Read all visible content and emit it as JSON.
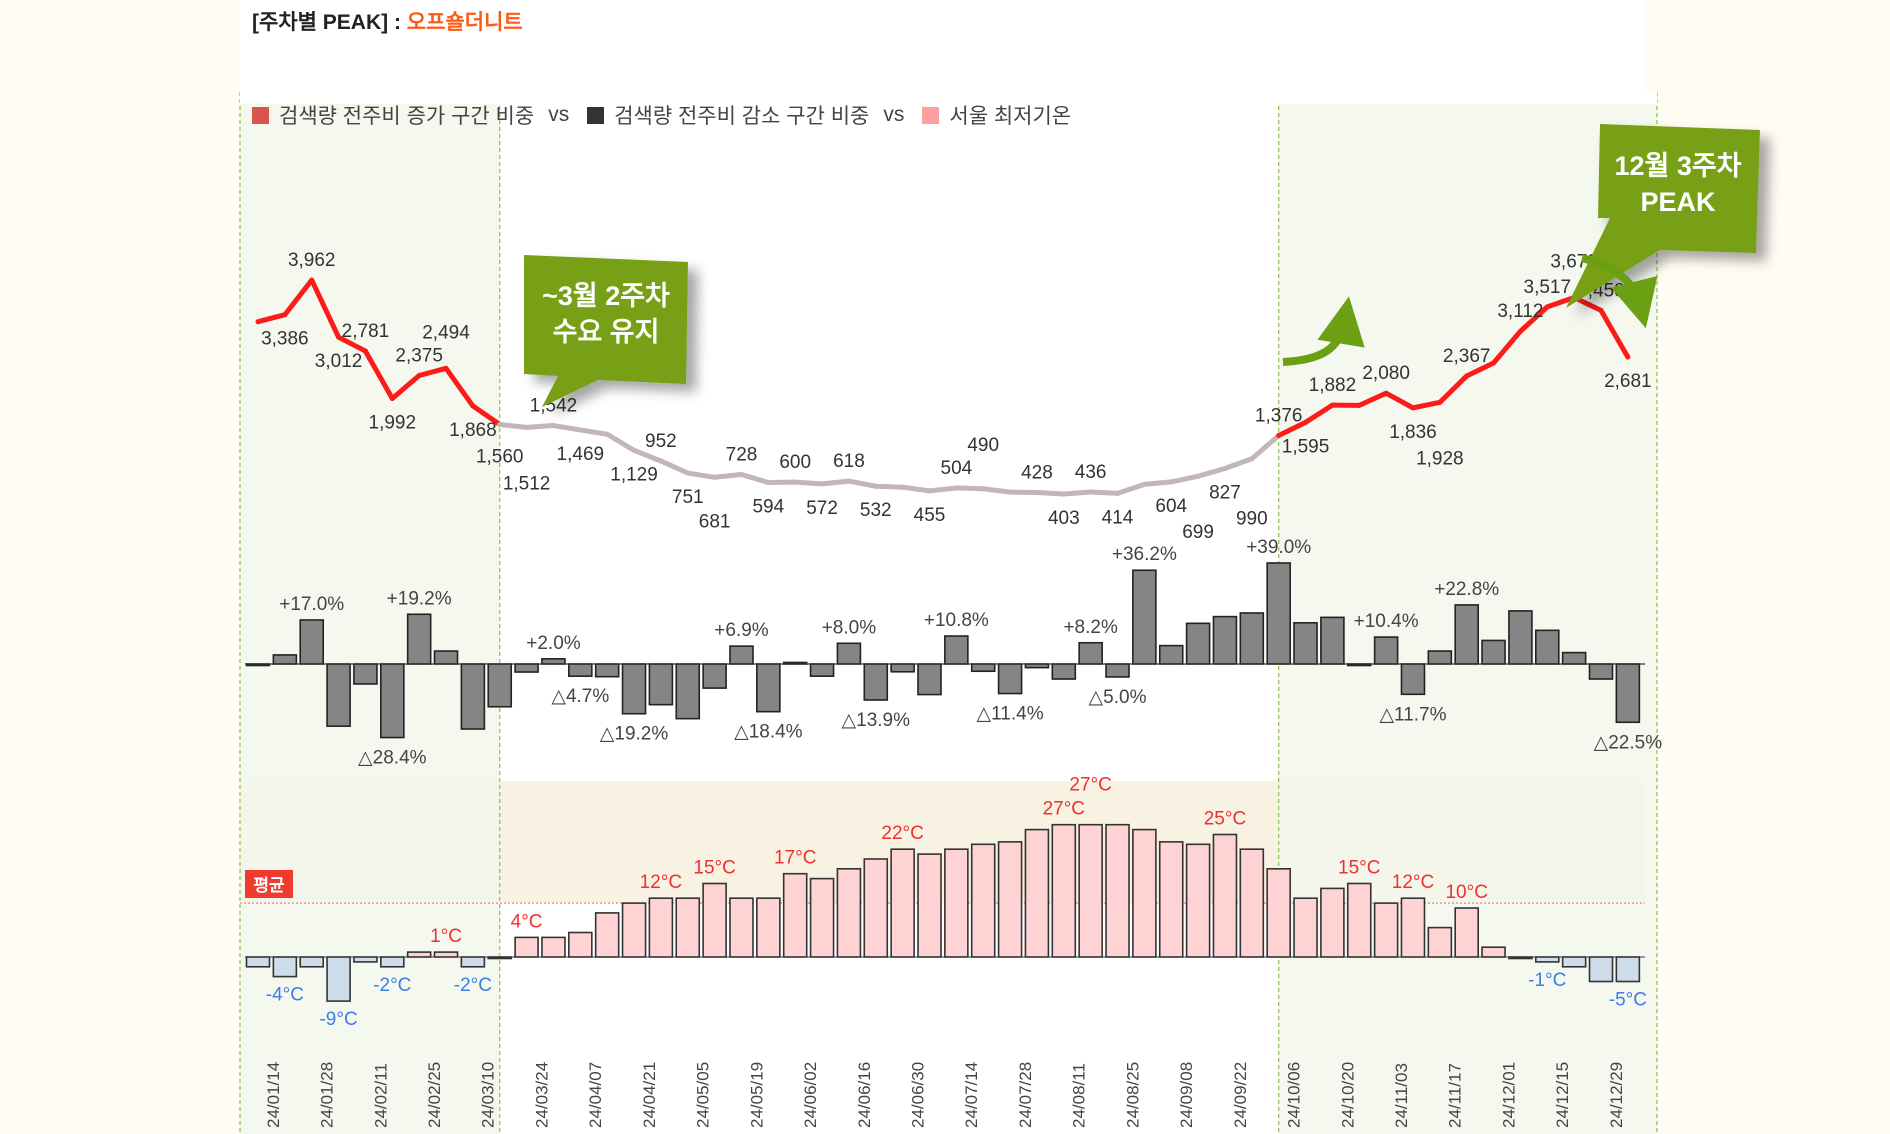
{
  "title": {
    "prefix": "[주차별 PEAK] : ",
    "brand": "오프숄더니트"
  },
  "legend": [
    {
      "label": "검색량 전주비 증가 구간 비중",
      "color": "#d9534f"
    },
    {
      "label": "검색량 전주비 감소 구간 비중",
      "color": "#333333"
    },
    {
      "label": "서울 최저기온",
      "color": "#ff9e9e"
    }
  ],
  "legend_separator": "vs",
  "callouts": [
    {
      "line1": "~3월 2주차",
      "line2": "수요 유지"
    },
    {
      "line1": "12월 3주차",
      "line2": "PEAK"
    }
  ],
  "avg_tag": "평균",
  "colors": {
    "peak_line": "#ff1a1a",
    "base_line": "#c2b6b6",
    "change_bar": "#858585",
    "temp_pos": "#ffd3d3",
    "temp_neg": "#cfdcea",
    "callout": "#77a014",
    "highlight_region": "#f3f7ec",
    "above_avg_band": "#f8f2e3"
  },
  "chart_data": [
    {
      "type": "line",
      "name": "weekly_search_volume",
      "weeks": 52,
      "highlight_weeks": [
        [
          1,
          10
        ],
        [
          39,
          52
        ]
      ],
      "values": [
        3270,
        3386,
        3962,
        3012,
        2781,
        1992,
        2375,
        2494,
        1868,
        1560,
        1512,
        1542,
        1469,
        1397,
        1129,
        952,
        751,
        681,
        728,
        594,
        600,
        572,
        618,
        532,
        516,
        455,
        504,
        490,
        434,
        428,
        403,
        436,
        414,
        564,
        604,
        699,
        827,
        990,
        1376,
        1595,
        1882,
        1878,
        2080,
        1836,
        1928,
        2367,
        2583,
        3112,
        3517,
        3672,
        3458,
        2681
      ],
      "labels": [
        null,
        "3,386",
        "3,962",
        "3,012",
        "2,781",
        "1,992",
        "2,375",
        "2,494",
        "1,868",
        "1,560",
        "1,512",
        "1,542",
        "1,469",
        null,
        "1,129",
        "952",
        "751",
        "681",
        "728",
        "594",
        "600",
        "572",
        "618",
        "532",
        null,
        "455",
        "504",
        "490",
        null,
        "428",
        "403",
        "436",
        "414",
        null,
        "604",
        "699",
        "827",
        "990",
        "1,376",
        "1,595",
        "1,882",
        null,
        "2,080",
        "1,836",
        "1,928",
        "2,367",
        null,
        "3,112",
        "3,517",
        "3,672",
        "3,458",
        "2,681"
      ]
    },
    {
      "type": "bar",
      "name": "week_over_week_change_pct",
      "values": [
        -0.5,
        3.5,
        17.0,
        -24.0,
        -7.7,
        -28.4,
        19.2,
        5.0,
        -25.1,
        -16.5,
        -3.1,
        2.0,
        -4.7,
        -4.9,
        -19.2,
        -15.7,
        -21.1,
        -9.3,
        6.9,
        -18.4,
        0.6,
        -4.7,
        8.0,
        -13.9,
        -3.0,
        -11.8,
        10.8,
        -2.8,
        -11.4,
        -1.4,
        -5.8,
        8.2,
        -5.0,
        36.2,
        7.1,
        15.7,
        18.3,
        19.7,
        39.0,
        15.9,
        18.0,
        -0.2,
        10.4,
        -11.7,
        5.0,
        22.8,
        9.1,
        20.5,
        13.0,
        4.4,
        -5.8,
        -22.5
      ],
      "labels": [
        null,
        null,
        "+17.0%",
        null,
        null,
        "△28.4%",
        "+19.2%",
        null,
        null,
        null,
        null,
        "+2.0%",
        "△4.7%",
        null,
        "△19.2%",
        null,
        null,
        null,
        "+6.9%",
        "△18.4%",
        null,
        null,
        "+8.0%",
        "△13.9%",
        null,
        null,
        "+10.8%",
        null,
        "△11.4%",
        null,
        null,
        "+8.2%",
        "△5.0%",
        "+36.2%",
        null,
        null,
        null,
        null,
        "+39.0%",
        null,
        null,
        null,
        "+10.4%",
        "△11.7%",
        null,
        "+22.8%",
        null,
        null,
        null,
        null,
        null,
        "△22.5%"
      ]
    },
    {
      "type": "bar",
      "name": "seoul_min_temperature_c",
      "average": 11,
      "values": [
        -2,
        -4,
        -2,
        -9,
        -1,
        -2,
        1,
        1,
        -2,
        0,
        4,
        4,
        5,
        9,
        11,
        12,
        12,
        15,
        12,
        12,
        17,
        16,
        18,
        20,
        22,
        21,
        22,
        23,
        23.5,
        26,
        27,
        27,
        27,
        26,
        23.5,
        23,
        25,
        22,
        18,
        12,
        14,
        15,
        11,
        12,
        6,
        10,
        2,
        0,
        -1,
        -2,
        -5,
        -5
      ],
      "labels": [
        null,
        "-4°C",
        null,
        "-9°C",
        null,
        "-2°C",
        null,
        "1°C",
        "-2°C",
        null,
        "4°C",
        null,
        null,
        null,
        null,
        "12°C",
        null,
        "15°C",
        null,
        null,
        "17°C",
        null,
        null,
        null,
        "22°C",
        null,
        null,
        null,
        null,
        null,
        "27°C",
        "27°C",
        null,
        null,
        null,
        null,
        "25°C",
        null,
        null,
        null,
        null,
        "15°C",
        null,
        "12°C",
        null,
        "10°C",
        null,
        null,
        "-1°C",
        null,
        null,
        "-5°C"
      ]
    },
    {
      "type": "axis",
      "x_tick_labels": [
        "24/01/14",
        "24/01/28",
        "24/02/11",
        "24/02/25",
        "24/03/10",
        "24/03/24",
        "24/04/07",
        "24/04/21",
        "24/05/05",
        "24/05/19",
        "24/06/02",
        "24/06/16",
        "24/06/30",
        "24/07/14",
        "24/07/28",
        "24/08/11",
        "24/08/25",
        "24/09/08",
        "24/09/22",
        "24/10/06",
        "24/10/20",
        "24/11/03",
        "24/11/17",
        "24/12/01",
        "24/12/15",
        "24/12/29"
      ]
    }
  ]
}
